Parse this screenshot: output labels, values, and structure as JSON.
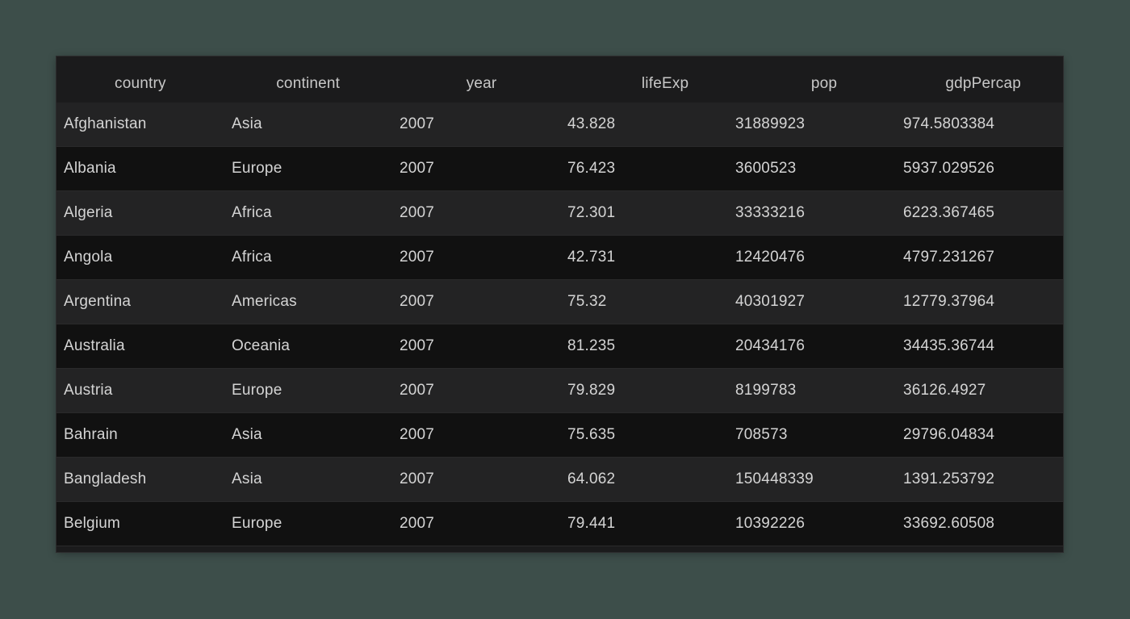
{
  "table": {
    "columns": [
      "country",
      "continent",
      "year",
      "lifeExp",
      "pop",
      "gdpPercap"
    ],
    "rows": [
      [
        "Afghanistan",
        "Asia",
        "2007",
        "43.828",
        "31889923",
        "974.5803384"
      ],
      [
        "Albania",
        "Europe",
        "2007",
        "76.423",
        "3600523",
        "5937.029526"
      ],
      [
        "Algeria",
        "Africa",
        "2007",
        "72.301",
        "33333216",
        "6223.367465"
      ],
      [
        "Angola",
        "Africa",
        "2007",
        "42.731",
        "12420476",
        "4797.231267"
      ],
      [
        "Argentina",
        "Americas",
        "2007",
        "75.32",
        "40301927",
        "12779.37964"
      ],
      [
        "Australia",
        "Oceania",
        "2007",
        "81.235",
        "20434176",
        "34435.36744"
      ],
      [
        "Austria",
        "Europe",
        "2007",
        "79.829",
        "8199783",
        "36126.4927"
      ],
      [
        "Bahrain",
        "Asia",
        "2007",
        "75.635",
        "708573",
        "29796.04834"
      ],
      [
        "Bangladesh",
        "Asia",
        "2007",
        "64.062",
        "150448339",
        "1391.253792"
      ],
      [
        "Belgium",
        "Europe",
        "2007",
        "79.441",
        "10392226",
        "33692.60508"
      ]
    ]
  },
  "colors": {
    "background": "#3d4e4a",
    "table_bg": "#1b1b1c",
    "row_light": "#232324",
    "row_dark": "#111111",
    "text": "#d4d4d4"
  }
}
